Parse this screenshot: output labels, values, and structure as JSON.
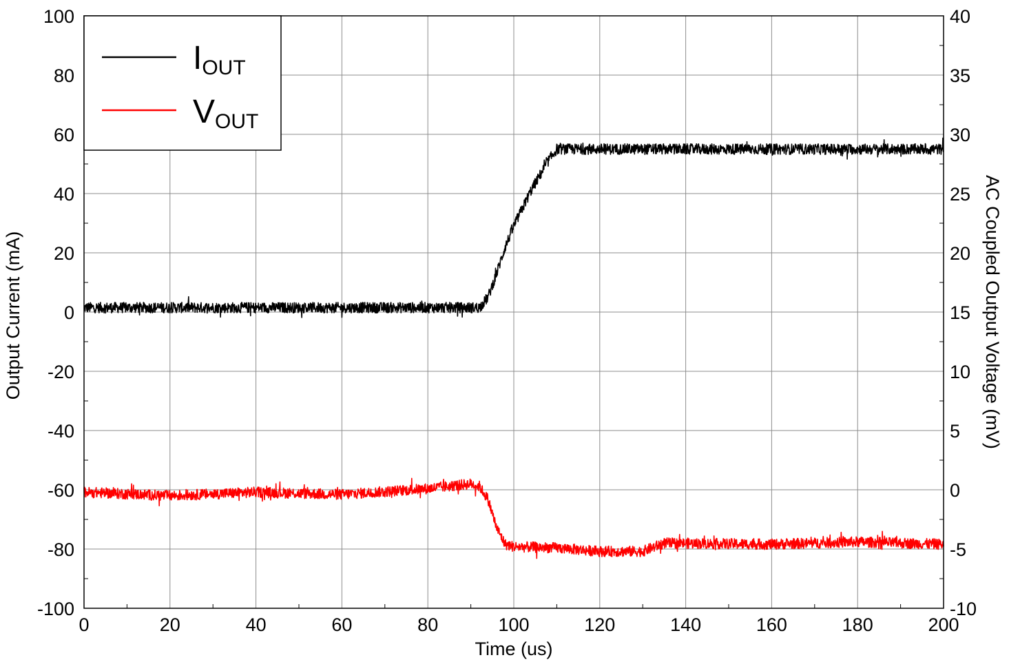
{
  "chart_data": {
    "type": "line",
    "xlabel": "Time (us)",
    "ylabel": "Output Current (mA)",
    "y2label": "AC Coupled Output Voltage (mV)",
    "xlim": [
      0,
      200
    ],
    "ylim": [
      -100,
      100
    ],
    "y2lim": [
      -10,
      40
    ],
    "x_ticks": [
      0,
      20,
      40,
      60,
      80,
      100,
      120,
      140,
      160,
      180,
      200
    ],
    "y_ticks": [
      100,
      80,
      60,
      40,
      20,
      0,
      -20,
      -40,
      -60,
      -80,
      -100
    ],
    "y2_ticks": [
      40,
      35,
      30,
      25,
      20,
      15,
      10,
      5,
      0,
      -5,
      -10
    ],
    "grid": true,
    "legend_position": "top-left",
    "series": [
      {
        "name_main": "I",
        "name_sub": "OUT",
        "axis": "left",
        "color": "#000000",
        "x": [
          0,
          92,
          94,
          96,
          98,
          100,
          102,
          104,
          106,
          108,
          110,
          200
        ],
        "y": [
          1.5,
          1.5,
          5,
          13,
          22,
          29,
          35,
          41,
          46,
          51,
          55,
          55
        ]
      },
      {
        "name_main": "V",
        "name_sub": "OUT",
        "axis": "right",
        "color": "#ff0000",
        "x": [
          0,
          20,
          40,
          60,
          80,
          90,
          92,
          94,
          96,
          98,
          100,
          110,
          120,
          130,
          135,
          160,
          180,
          200
        ],
        "y": [
          -0.2,
          -0.5,
          -0.2,
          -0.4,
          0.1,
          0.5,
          0.3,
          -0.8,
          -3.2,
          -4.6,
          -4.8,
          -4.9,
          -5.2,
          -5.2,
          -4.5,
          -4.6,
          -4.4,
          -4.6
        ]
      }
    ]
  }
}
